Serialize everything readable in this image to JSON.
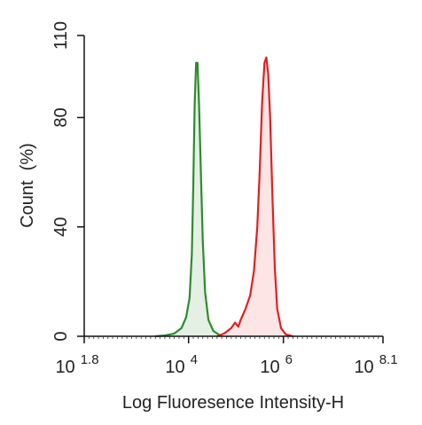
{
  "chart_data": {
    "type": "area",
    "title": "",
    "xlabel": "Log Fluoresence Intensity-H",
    "ylabel": "Count  (%)",
    "x_scale": "log10",
    "xlim": [
      1.8,
      8.1
    ],
    "ylim": [
      0,
      110
    ],
    "x_ticks": [
      {
        "base": "10",
        "exp": "1.8",
        "value": 1.8
      },
      {
        "base": "10",
        "exp": "4",
        "value": 4
      },
      {
        "base": "10",
        "exp": "6",
        "value": 6
      },
      {
        "base": "10",
        "exp": "8.1",
        "value": 8.1
      }
    ],
    "y_ticks": [
      {
        "label": "0",
        "value": 0
      },
      {
        "label": "40",
        "value": 40
      },
      {
        "label": "80",
        "value": 80
      },
      {
        "label": "110",
        "value": 110
      }
    ],
    "grid": false,
    "legend": "none",
    "series": [
      {
        "color": "#2e8b2e",
        "fill": "#e3f0e3",
        "points": [
          [
            3.3,
            0
          ],
          [
            3.5,
            0.3
          ],
          [
            3.7,
            1
          ],
          [
            3.85,
            3
          ],
          [
            3.95,
            7
          ],
          [
            4.02,
            14
          ],
          [
            4.07,
            30
          ],
          [
            4.1,
            55
          ],
          [
            4.13,
            85
          ],
          [
            4.16,
            100
          ],
          [
            4.19,
            100
          ],
          [
            4.22,
            85
          ],
          [
            4.26,
            60
          ],
          [
            4.3,
            35
          ],
          [
            4.35,
            16
          ],
          [
            4.42,
            6
          ],
          [
            4.52,
            2
          ],
          [
            4.65,
            0.5
          ],
          [
            4.85,
            0
          ]
        ]
      },
      {
        "color": "#e02020",
        "fill": "#fde5e5",
        "points": [
          [
            4.6,
            0
          ],
          [
            4.75,
            1
          ],
          [
            4.9,
            3
          ],
          [
            4.98,
            5
          ],
          [
            5.05,
            3.5
          ],
          [
            5.1,
            6
          ],
          [
            5.2,
            10
          ],
          [
            5.3,
            15
          ],
          [
            5.38,
            24
          ],
          [
            5.45,
            40
          ],
          [
            5.5,
            60
          ],
          [
            5.55,
            85
          ],
          [
            5.6,
            100
          ],
          [
            5.64,
            102
          ],
          [
            5.68,
            96
          ],
          [
            5.72,
            80
          ],
          [
            5.77,
            50
          ],
          [
            5.82,
            25
          ],
          [
            5.87,
            10
          ],
          [
            5.95,
            3
          ],
          [
            6.05,
            0.7
          ],
          [
            6.2,
            0
          ]
        ]
      }
    ]
  }
}
